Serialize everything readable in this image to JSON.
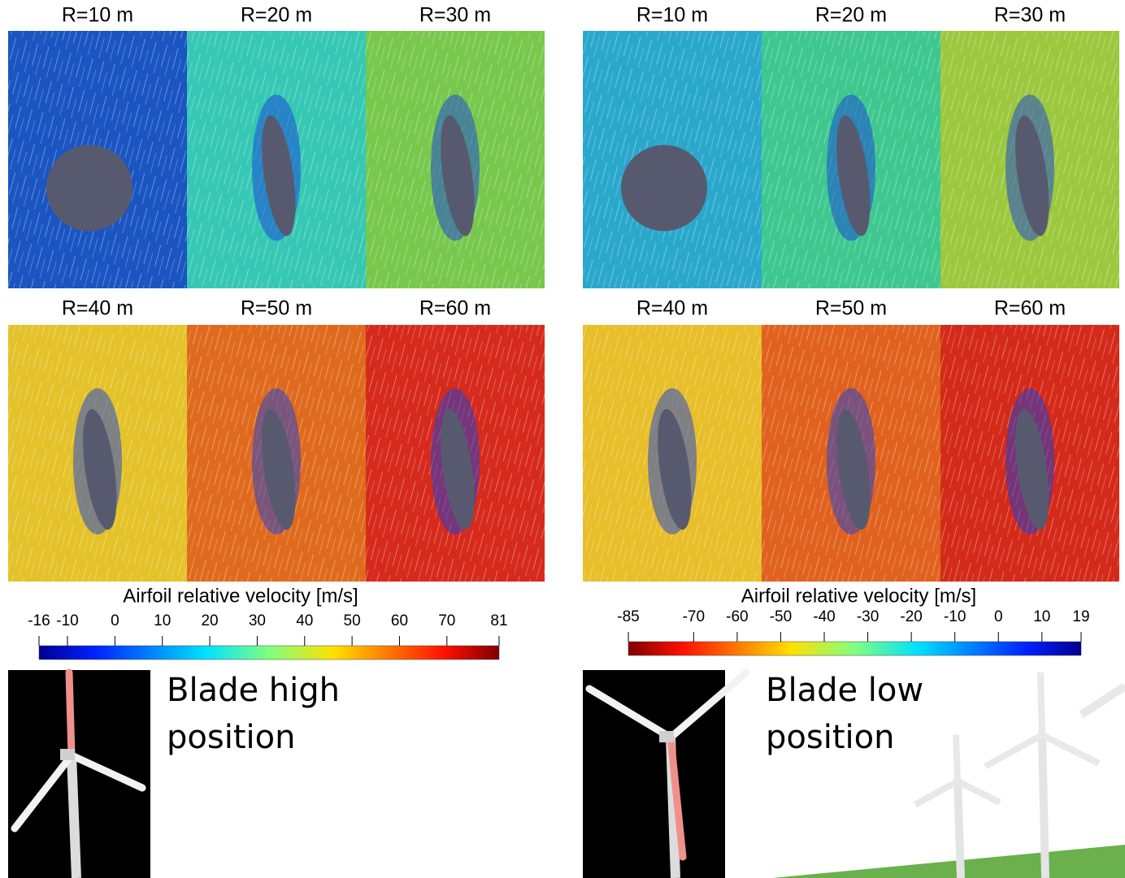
{
  "panels": [
    {
      "tiles": [
        "R=10 m",
        "R=20 m",
        "R=30 m",
        "R=40 m",
        "R=50 m",
        "R=60 m"
      ],
      "colorbar": {
        "title": "Airfoil relative velocity [m/s]",
        "range": [
          -16,
          81
        ],
        "ticks": [
          -16,
          -10,
          0,
          10,
          20,
          30,
          40,
          50,
          60,
          70,
          81
        ],
        "reversed": false
      },
      "caption": [
        "Blade high",
        "position"
      ]
    },
    {
      "tiles": [
        "R=10 m",
        "R=20 m",
        "R=30 m",
        "R=40 m",
        "R=50 m",
        "R=60 m"
      ],
      "colorbar": {
        "title": "Airfoil relative velocity [m/s]",
        "range": [
          -85,
          19
        ],
        "ticks": [
          -85,
          -70,
          -60,
          -50,
          -40,
          -30,
          -20,
          -10,
          0,
          10,
          19
        ],
        "reversed": true
      },
      "caption": [
        "Blade low",
        "position"
      ]
    }
  ]
}
